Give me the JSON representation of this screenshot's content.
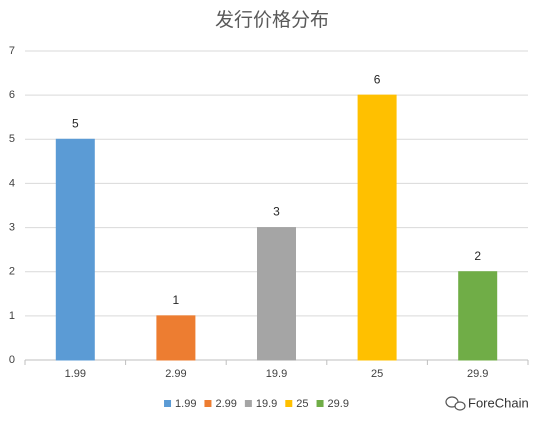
{
  "chart_data": {
    "type": "bar",
    "title": "发行价格分布",
    "categories": [
      "1.99",
      "2.99",
      "19.9",
      "25",
      "29.9"
    ],
    "values": [
      5,
      1,
      3,
      6,
      2
    ],
    "colors": [
      "#5b9bd5",
      "#ed7d31",
      "#a5a5a5",
      "#ffc000",
      "#70ad47"
    ],
    "ylim": [
      0,
      7
    ],
    "yticks": [
      0,
      1,
      2,
      3,
      4,
      5,
      6,
      7
    ],
    "grid": true,
    "legend": "bottom",
    "watermark": "ForeChain"
  }
}
